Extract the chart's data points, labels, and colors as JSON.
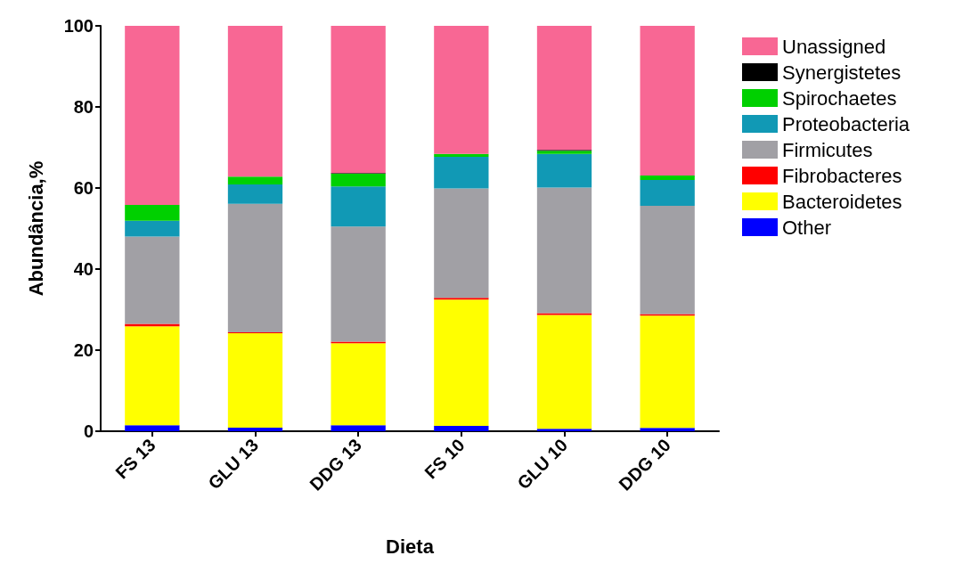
{
  "chart_data": {
    "type": "bar",
    "stacked": true,
    "xlabel": "Dieta",
    "ylabel": "Abundância,%",
    "categories": [
      "FS 13",
      "GLU 13",
      "DDG 13",
      "FS 10",
      "GLU 10",
      "DDG 10"
    ],
    "ylim": [
      0,
      100
    ],
    "yticks": [
      0,
      20,
      40,
      60,
      80,
      100
    ],
    "grid": false,
    "legend": "top right",
    "series": [
      {
        "name": "Other",
        "color": "#0000ff",
        "values": [
          1.5,
          0.9,
          1.5,
          1.3,
          0.6,
          0.8
        ]
      },
      {
        "name": "Bacteroidetes",
        "color": "#ffff00",
        "values": [
          24.4,
          23.3,
          20.2,
          31.2,
          28.1,
          27.7
        ]
      },
      {
        "name": "Fibrobacteres",
        "color": "#ff0000",
        "values": [
          0.6,
          0.2,
          0.4,
          0.4,
          0.4,
          0.4
        ]
      },
      {
        "name": "Firmicutes",
        "color": "#a1a0a5",
        "values": [
          21.5,
          31.7,
          28.4,
          27.0,
          31.0,
          26.7
        ]
      },
      {
        "name": "Proteobacteria",
        "color": "#1199b5",
        "values": [
          3.9,
          4.8,
          9.9,
          7.8,
          8.3,
          6.4
        ]
      },
      {
        "name": "Spirochaetes",
        "color": "#00d000",
        "values": [
          3.9,
          1.9,
          3.1,
          0.7,
          0.8,
          1.1
        ]
      },
      {
        "name": "Synergistetes",
        "color": "#000000",
        "values": [
          0,
          0,
          0.2,
          0,
          0.2,
          0
        ]
      },
      {
        "name": "Unassigned",
        "color": "#f86794",
        "values": [
          44.2,
          37.2,
          36.3,
          31.6,
          30.6,
          36.9
        ]
      }
    ]
  }
}
